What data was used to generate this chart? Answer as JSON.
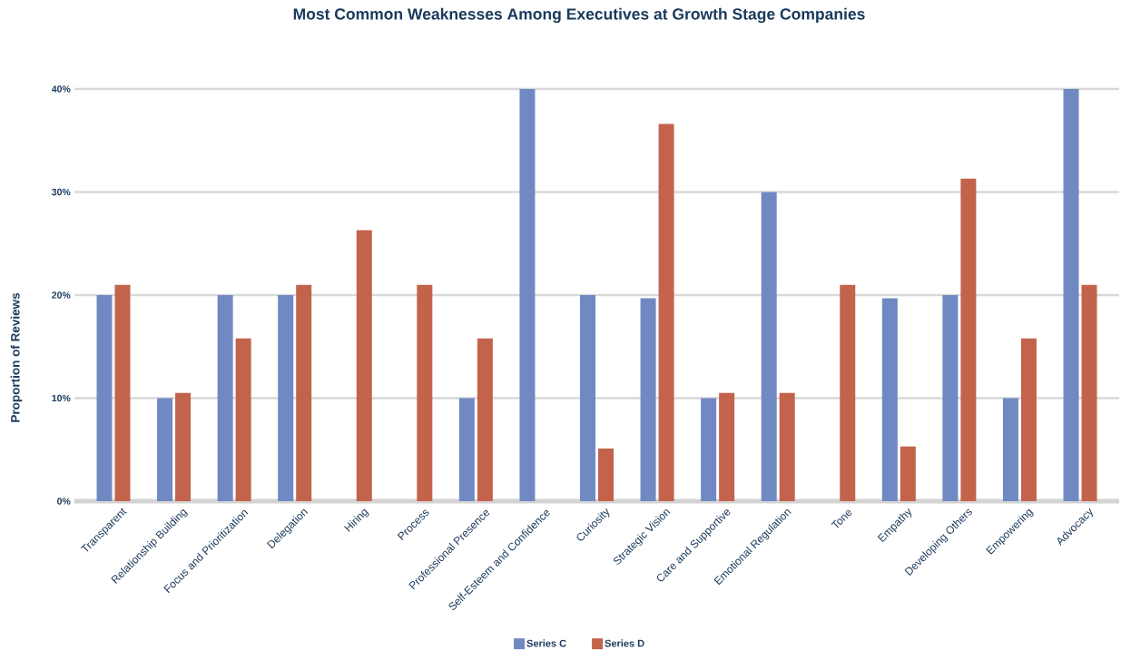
{
  "chart_data": {
    "type": "bar",
    "title": "Most Common Weaknesses Among Executives at Growth Stage Companies",
    "ylabel": "Proportion of Reviews",
    "categories": [
      "Transparent",
      "Relationship Building",
      "Focus and Prioritization",
      "Delegation",
      "Hiring",
      "Process",
      "Professional Presence",
      "Self-Esteem and Confidence",
      "Curiosity",
      "Strategic Vision",
      "Care and Supportive",
      "Emotional Regulation",
      "Tone",
      "Empathy",
      "Developing Others",
      "Empowering",
      "Advocacy"
    ],
    "series": [
      {
        "name": "Series C",
        "color": "#7089c2",
        "values": [
          20,
          10,
          20,
          20,
          null,
          null,
          10,
          40,
          20,
          19.7,
          10,
          30,
          null,
          19.7,
          20,
          10,
          40
        ]
      },
      {
        "name": "Series D",
        "color": "#c4634c",
        "values": [
          21.0,
          10.5,
          15.8,
          21.0,
          26.3,
          21.0,
          15.8,
          null,
          5.1,
          36.6,
          10.5,
          10.5,
          21.0,
          5.3,
          31.3,
          15.8,
          21.0
        ]
      }
    ],
    "ylim": [
      0,
      40
    ],
    "yticks": [
      {
        "value": 0,
        "label": "0%"
      },
      {
        "value": 10,
        "label": "10%"
      },
      {
        "value": 20,
        "label": "20%"
      },
      {
        "value": 30,
        "label": "30%"
      },
      {
        "value": 40,
        "label": "40%"
      }
    ],
    "grid": "y",
    "legend": "bottom"
  }
}
